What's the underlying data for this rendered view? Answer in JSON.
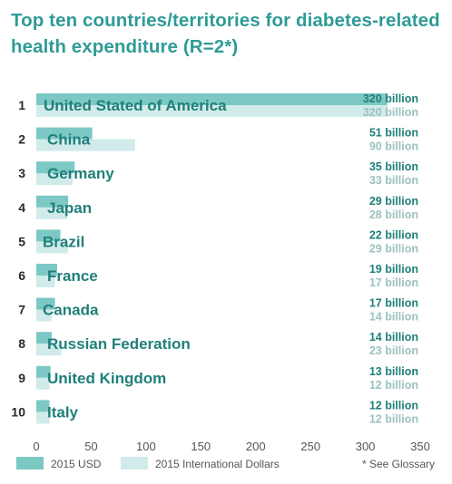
{
  "title": "Top ten countries/territories for diabetes-related health expenditure (R=2*)",
  "footnote": "* See Glossary",
  "colors": {
    "usd": "#7cc8c4",
    "international": "#d0ebe9",
    "title": "#2e9b96"
  },
  "chart_data": {
    "type": "bar",
    "orientation": "horizontal",
    "title": "Top ten countries/territories for diabetes-related health expenditure (R=2*)",
    "ranks": [
      "1",
      "2",
      "3",
      "4",
      "5",
      "6",
      "7",
      "8",
      "9",
      "10"
    ],
    "categories": [
      "United Stated of America",
      "China",
      "Germany",
      "Japan",
      "Brazil",
      "France",
      "Canada",
      "Russian Federation",
      "United Kingdom",
      "Italy"
    ],
    "series": [
      {
        "name": "2015 USD",
        "values": [
          320,
          51,
          35,
          29,
          22,
          19,
          17,
          14,
          13,
          12
        ],
        "labels": [
          "320 billion",
          "51 billion",
          "35 billion",
          "29 billion",
          "22 billion",
          "19 billion",
          "17 billion",
          "14 billion",
          "13 billion",
          "12 billion"
        ]
      },
      {
        "name": "2015 International Dollars",
        "values": [
          320,
          90,
          33,
          28,
          29,
          17,
          14,
          23,
          12,
          12
        ],
        "labels": [
          "320 billion",
          "90 billion",
          "33 billion",
          "28 billion",
          "29 billion",
          "17 billion",
          "14 billion",
          "23 billion",
          "12 billion",
          "12 billion"
        ]
      }
    ],
    "xlim": [
      0,
      350
    ],
    "xticks": [
      "0",
      "50",
      "100",
      "150",
      "200",
      "250",
      "300",
      "350"
    ],
    "grid": false,
    "legend_position": "bottom"
  }
}
